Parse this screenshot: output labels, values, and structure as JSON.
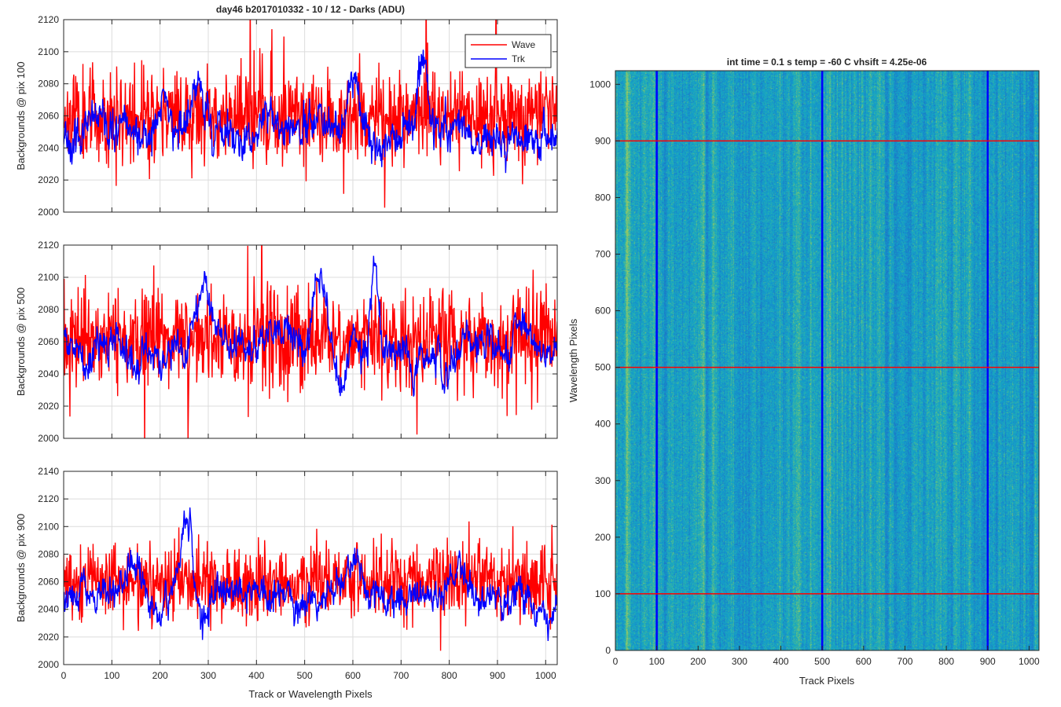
{
  "figure": {
    "title": "day46 b2017010332 - 10 / 12 - Darks (ADU)"
  },
  "chart_data": [
    {
      "type": "line",
      "title": "day46 b2017010332 - 10 / 12 - Darks (ADU)",
      "xlabel": "",
      "ylabel": "Backgrounds @ pix 100",
      "xlim": [
        0,
        1024
      ],
      "ylim": [
        2000,
        2120
      ],
      "xticks": [
        0,
        100,
        200,
        300,
        400,
        500,
        600,
        700,
        800,
        900,
        1000
      ],
      "yticks": [
        2000,
        2020,
        2040,
        2060,
        2080,
        2100,
        2120
      ],
      "grid": true,
      "legend": "top-right",
      "series": [
        {
          "name": "Wave",
          "color": "#ff0000",
          "mean": 2060,
          "noise": 14,
          "seed": 11,
          "peaks": []
        },
        {
          "name": "Trk",
          "color": "#0000ff",
          "mean": 2050,
          "noise": 8,
          "seed": 23,
          "peaks": [
            [
              210,
              20,
              12
            ],
            [
              280,
              30,
              18
            ],
            [
              440,
              10,
              14
            ],
            [
              600,
              35,
              14
            ],
            [
              745,
              45,
              12
            ],
            [
              375,
              -12,
              20
            ],
            [
              640,
              -8,
              15
            ],
            [
              870,
              -10,
              25
            ]
          ]
        }
      ]
    },
    {
      "type": "line",
      "title": "",
      "xlabel": "",
      "ylabel": "Backgrounds @ pix 500",
      "xlim": [
        0,
        1024
      ],
      "ylim": [
        2000,
        2120
      ],
      "xticks": [
        0,
        100,
        200,
        300,
        400,
        500,
        600,
        700,
        800,
        900,
        1000
      ],
      "yticks": [
        2000,
        2020,
        2040,
        2060,
        2080,
        2100,
        2120
      ],
      "grid": true,
      "series": [
        {
          "name": "Wave",
          "color": "#ff0000",
          "mean": 2062,
          "noise": 15,
          "seed": 37,
          "peaks": []
        },
        {
          "name": "Trk",
          "color": "#0000ff",
          "mean": 2058,
          "noise": 7,
          "seed": 41,
          "peaks": [
            [
              290,
              35,
              22
            ],
            [
              530,
              42,
              18
            ],
            [
              645,
              45,
              10
            ],
            [
              460,
              12,
              15
            ],
            [
              580,
              -30,
              22
            ],
            [
              730,
              -20,
              18
            ],
            [
              795,
              -22,
              15
            ],
            [
              150,
              -18,
              18
            ],
            [
              210,
              -15,
              15
            ],
            [
              600,
              25,
              14
            ]
          ]
        }
      ]
    },
    {
      "type": "line",
      "title": "",
      "xlabel": "Track or Wavelength Pixels",
      "ylabel": "Backgrounds @ pix 900",
      "xlim": [
        0,
        1024
      ],
      "ylim": [
        2000,
        2140
      ],
      "xticks": [
        0,
        100,
        200,
        300,
        400,
        500,
        600,
        700,
        800,
        900,
        1000
      ],
      "yticks": [
        2000,
        2020,
        2040,
        2060,
        2080,
        2100,
        2120,
        2140
      ],
      "grid": true,
      "series": [
        {
          "name": "Wave",
          "color": "#ff0000",
          "mean": 2060,
          "noise": 14,
          "seed": 53,
          "peaks": []
        },
        {
          "name": "Trk",
          "color": "#0000ff",
          "mean": 2050,
          "noise": 8,
          "seed": 67,
          "peaks": [
            [
              255,
              62,
              14
            ],
            [
              140,
              18,
              15
            ],
            [
              360,
              10,
              20
            ],
            [
              600,
              25,
              20
            ],
            [
              200,
              -20,
              12
            ],
            [
              290,
              -18,
              14
            ],
            [
              490,
              -10,
              15
            ],
            [
              820,
              15,
              25
            ],
            [
              1000,
              -15,
              12
            ]
          ]
        }
      ]
    },
    {
      "type": "heatmap",
      "title": "int time = 0.1 s   temp = -60 C   vhsift = 4.25e-06",
      "xlabel": "Track Pixels",
      "ylabel": "Wavelength Pixels",
      "xlim": [
        0,
        1024
      ],
      "ylim": [
        0,
        1024
      ],
      "xticks": [
        0,
        100,
        200,
        300,
        400,
        500,
        600,
        700,
        800,
        900,
        1000
      ],
      "yticks": [
        0,
        100,
        200,
        300,
        400,
        500,
        600,
        700,
        800,
        900,
        1000
      ],
      "colormap": "parula",
      "vertical_markers": {
        "color": "#0000ff",
        "x": [
          100,
          500,
          900
        ]
      },
      "horizontal_markers": {
        "color": "#ff0000",
        "y": [
          100,
          500,
          900
        ]
      }
    }
  ]
}
